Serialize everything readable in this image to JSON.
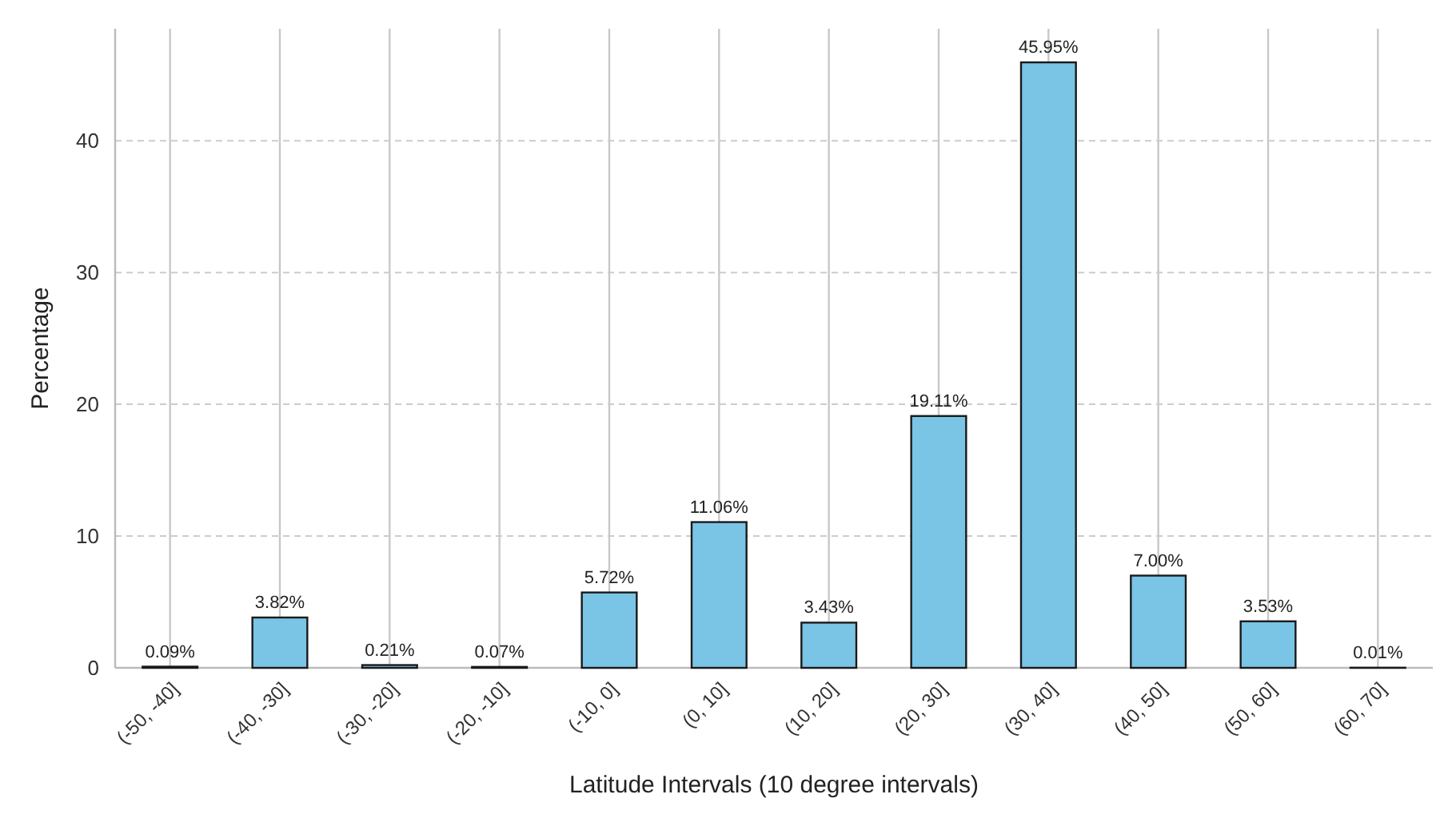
{
  "chart_data": {
    "type": "bar",
    "xlabel": "Latitude Intervals (10 degree intervals)",
    "ylabel": "Percentage",
    "categories": [
      "(-50, -40]",
      "(-40, -30]",
      "(-30, -20]",
      "(-20, -10]",
      "(-10, 0]",
      "(0, 10]",
      "(10, 20]",
      "(20, 30]",
      "(30, 40]",
      "(40, 50]",
      "(50, 60]",
      "(60, 70]"
    ],
    "values": [
      0.09,
      3.82,
      0.21,
      0.07,
      5.72,
      11.06,
      3.43,
      19.11,
      45.95,
      7.0,
      3.53,
      0.01
    ],
    "value_labels": [
      "0.09%",
      "3.82%",
      "0.21%",
      "0.07%",
      "5.72%",
      "11.06%",
      "3.43%",
      "19.11%",
      "45.95%",
      "7.00%",
      "3.53%",
      "0.01%"
    ],
    "color": "#7ac4e6",
    "ylim": [
      0,
      48.5
    ],
    "yticks": [
      0,
      10,
      20,
      30,
      40
    ],
    "grid": true
  }
}
